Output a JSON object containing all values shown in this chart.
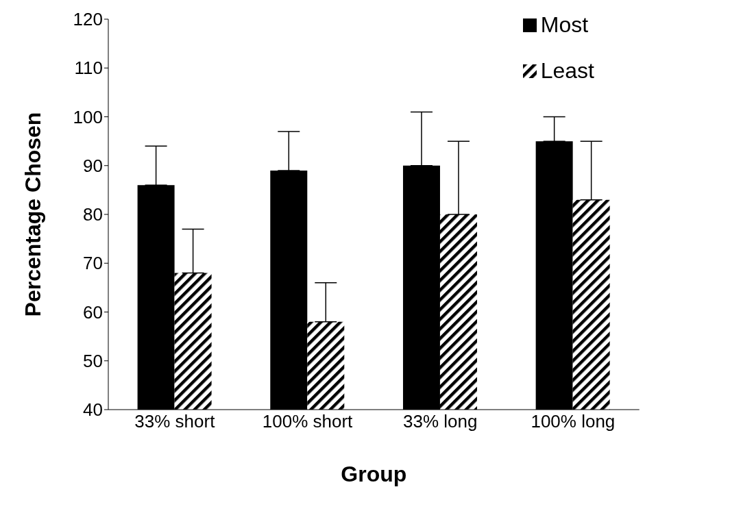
{
  "chart_data": {
    "type": "bar",
    "xlabel": "Group",
    "ylabel": "Percentage Chosen",
    "categories": [
      "33% short",
      "100% short",
      "33% long",
      "100% long"
    ],
    "series": [
      {
        "name": "Most",
        "color": "#000000",
        "values": [
          86,
          89,
          90,
          95
        ],
        "errors": [
          [
            86,
            94
          ],
          [
            89,
            97
          ],
          [
            90,
            101
          ],
          [
            95,
            100
          ]
        ]
      },
      {
        "name": "Least",
        "color": "#000000",
        "values": [
          68,
          58,
          80,
          83
        ],
        "errors": [
          [
            68,
            77
          ],
          [
            58,
            66
          ],
          [
            80,
            95
          ],
          [
            83,
            95
          ]
        ]
      }
    ],
    "ylim": [
      40,
      120
    ],
    "yticks": [
      40,
      50,
      60,
      70,
      80,
      90,
      100,
      110,
      120
    ],
    "grid": false,
    "legend": "top right"
  }
}
